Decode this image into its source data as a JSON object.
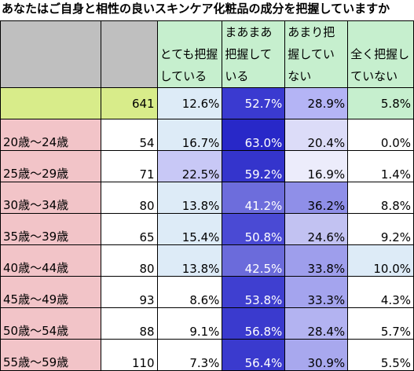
{
  "title": "あなたはご自身と相性の良いスキンケア化粧品の成分を把握していますか",
  "chart_data": {
    "type": "table",
    "columns": [
      "とても把握している",
      "まあまあ把握している",
      "あまり把握していない",
      "全く把握していない"
    ],
    "total": {
      "label": "",
      "n": "641",
      "values": [
        "12.6%",
        "52.7%",
        "28.9%",
        "5.8%"
      ]
    },
    "rows": [
      {
        "label": "20歳〜24歳",
        "n": "54",
        "values": [
          "16.7%",
          "63.0%",
          "20.4%",
          "0.0%"
        ]
      },
      {
        "label": "25歳〜29歳",
        "n": "71",
        "values": [
          "22.5%",
          "59.2%",
          "16.9%",
          "1.4%"
        ]
      },
      {
        "label": "30歳〜34歳",
        "n": "80",
        "values": [
          "13.8%",
          "41.2%",
          "36.2%",
          "8.8%"
        ]
      },
      {
        "label": "35歳〜39歳",
        "n": "65",
        "values": [
          "15.4%",
          "50.8%",
          "24.6%",
          "9.2%"
        ]
      },
      {
        "label": "40歳〜44歳",
        "n": "80",
        "values": [
          "13.8%",
          "42.5%",
          "33.8%",
          "10.0%"
        ]
      },
      {
        "label": "45歳〜49歳",
        "n": "93",
        "values": [
          "8.6%",
          "53.8%",
          "33.3%",
          "4.3%"
        ]
      },
      {
        "label": "50歳〜54歳",
        "n": "88",
        "values": [
          "9.1%",
          "56.8%",
          "28.4%",
          "5.7%"
        ]
      },
      {
        "label": "55歳〜59歳",
        "n": "110",
        "values": [
          "7.3%",
          "56.4%",
          "30.9%",
          "5.5%"
        ]
      }
    ],
    "cell_colors": [
      [
        "#ddebf7",
        "#3a3ad0",
        "#b4b4f5",
        "#c6efce"
      ],
      [
        "#ddebf7",
        "#2828c8",
        "#dcdcf8",
        "#ffffff"
      ],
      [
        "#c8c8f6",
        "#3434cc",
        "#ececfb",
        "#ffffff"
      ],
      [
        "#ddebf7",
        "#6d6ddc",
        "#8f8fe8",
        "#ffffff"
      ],
      [
        "#ddebf7",
        "#4a4ad4",
        "#c2c2f2",
        "#ffffff"
      ],
      [
        "#ddebf7",
        "#6b6bdb",
        "#9e9eec",
        "#ddebf7"
      ],
      [
        "#ffffff",
        "#3f3fd0",
        "#a4a4ee",
        "#ffffff"
      ],
      [
        "#ffffff",
        "#3a3ace",
        "#b3b3f1",
        "#ffffff"
      ],
      [
        "#ffffff",
        "#3a3ace",
        "#a8a8ee",
        "#ffffff"
      ]
    ]
  }
}
